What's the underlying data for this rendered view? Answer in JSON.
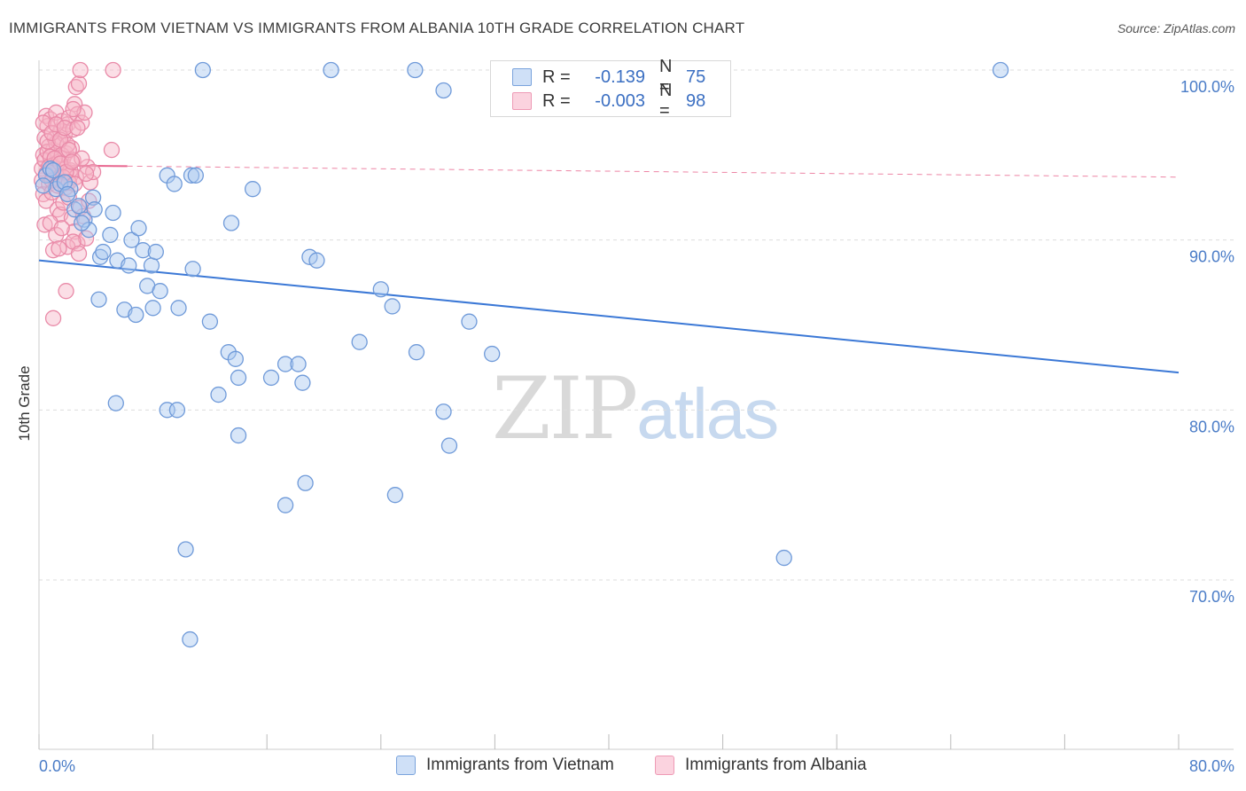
{
  "header": {
    "title": "IMMIGRANTS FROM VIETNAM VS IMMIGRANTS FROM ALBANIA 10TH GRADE CORRELATION CHART",
    "source": "Source: ZipAtlas.com"
  },
  "legend": {
    "rows": [
      {
        "r_label": "R =",
        "r_value": "-0.139",
        "n_label": "N =",
        "n_value": "75",
        "color": "#a9c7f0",
        "stroke": "#6f9ad9"
      },
      {
        "r_label": "R =",
        "r_value": "-0.003",
        "n_label": "N =",
        "n_value": "98",
        "color": "#f6b5c8",
        "stroke": "#e98aa8"
      }
    ]
  },
  "bottom_legend": {
    "vietnam": "Immigrants from Vietnam",
    "albania": "Immigrants from Albania"
  },
  "watermark": {
    "zip": "ZIP",
    "atlas": "atlas"
  },
  "chart_data": {
    "type": "scatter",
    "xlabel": "",
    "ylabel": "10th Grade",
    "xlim": [
      0,
      80
    ],
    "ylim": [
      60,
      100
    ],
    "x_tick_labels": [
      "0.0%",
      "80.0%"
    ],
    "y_ticks": [
      {
        "value": 100,
        "label": "100.0%"
      },
      {
        "value": 90,
        "label": "90.0%"
      },
      {
        "value": 80,
        "label": "80.0%"
      },
      {
        "value": 70,
        "label": "70.0%"
      }
    ],
    "grid": true,
    "series": [
      {
        "name": "Immigrants from Vietnam",
        "color": "#a9c7f0",
        "stroke": "#6f9ad9",
        "trend": {
          "x": [
            0,
            80
          ],
          "y": [
            88.8,
            82.2
          ],
          "color": "#3b78d6",
          "dashed": false
        },
        "points": [
          [
            0.5,
            93.8
          ],
          [
            0.8,
            94.2
          ],
          [
            1.2,
            93.0
          ],
          [
            1.5,
            93.3
          ],
          [
            2.2,
            93.0
          ],
          [
            2.5,
            91.8
          ],
          [
            2.8,
            92.0
          ],
          [
            3.2,
            91.2
          ],
          [
            3.5,
            90.6
          ],
          [
            3.8,
            92.5
          ],
          [
            3.9,
            91.8
          ],
          [
            4.3,
            89.0
          ],
          [
            4.5,
            89.3
          ],
          [
            5.0,
            90.3
          ],
          [
            5.2,
            91.6
          ],
          [
            5.5,
            88.8
          ],
          [
            6.3,
            88.5
          ],
          [
            6.5,
            90.0
          ],
          [
            7.0,
            90.7
          ],
          [
            7.3,
            89.4
          ],
          [
            7.6,
            87.3
          ],
          [
            7.9,
            88.5
          ],
          [
            8.2,
            89.3
          ],
          [
            8.5,
            87.0
          ],
          [
            9.0,
            93.8
          ],
          [
            9.5,
            93.3
          ],
          [
            10.7,
            93.8
          ],
          [
            11.0,
            93.8
          ],
          [
            11.5,
            100.0
          ],
          [
            13.5,
            91.0
          ],
          [
            15.0,
            93.0
          ],
          [
            4.2,
            86.5
          ],
          [
            6.0,
            85.9
          ],
          [
            6.8,
            85.6
          ],
          [
            8.0,
            86.0
          ],
          [
            9.8,
            86.0
          ],
          [
            10.8,
            88.3
          ],
          [
            12.0,
            85.2
          ],
          [
            13.3,
            83.4
          ],
          [
            13.8,
            83.0
          ],
          [
            14.0,
            81.9
          ],
          [
            16.3,
            81.9
          ],
          [
            17.3,
            82.7
          ],
          [
            18.2,
            82.7
          ],
          [
            18.5,
            81.6
          ],
          [
            19.0,
            89.0
          ],
          [
            19.5,
            88.8
          ],
          [
            20.5,
            100.0
          ],
          [
            22.5,
            84.0
          ],
          [
            24.0,
            87.1
          ],
          [
            24.8,
            86.1
          ],
          [
            26.4,
            100.0
          ],
          [
            26.5,
            83.4
          ],
          [
            28.4,
            98.8
          ],
          [
            30.2,
            85.2
          ],
          [
            31.8,
            83.3
          ],
          [
            5.4,
            80.4
          ],
          [
            9.0,
            80.0
          ],
          [
            9.7,
            80.0
          ],
          [
            12.6,
            80.9
          ],
          [
            14.0,
            78.5
          ],
          [
            17.3,
            74.4
          ],
          [
            18.7,
            75.7
          ],
          [
            25.0,
            75.0
          ],
          [
            28.4,
            79.9
          ],
          [
            28.8,
            77.9
          ],
          [
            10.3,
            71.8
          ],
          [
            10.6,
            66.5
          ],
          [
            52.3,
            71.3
          ],
          [
            67.5,
            100.0
          ],
          [
            1.0,
            94.1
          ],
          [
            1.8,
            93.4
          ],
          [
            0.3,
            93.2
          ],
          [
            2.0,
            92.7
          ],
          [
            3.0,
            91.0
          ]
        ]
      },
      {
        "name": "Immigrants from Albania",
        "color": "#f6b5c8",
        "stroke": "#e98aa8",
        "trend": {
          "x": [
            0,
            80
          ],
          "y": [
            94.4,
            93.7
          ],
          "color": "#e8668f",
          "dashed": true,
          "solid_until": 6.2
        },
        "points": [
          [
            0.3,
            95.0
          ],
          [
            0.4,
            96.0
          ],
          [
            0.5,
            97.3
          ],
          [
            0.6,
            96.7
          ],
          [
            0.7,
            95.5
          ],
          [
            0.8,
            97.1
          ],
          [
            0.9,
            94.5
          ],
          [
            1.0,
            95.3
          ],
          [
            1.1,
            96.0
          ],
          [
            1.2,
            97.5
          ],
          [
            1.3,
            94.0
          ],
          [
            1.4,
            95.8
          ],
          [
            1.5,
            96.4
          ],
          [
            1.6,
            97.0
          ],
          [
            1.7,
            94.8
          ],
          [
            1.8,
            96.2
          ],
          [
            1.9,
            95.1
          ],
          [
            2.0,
            96.8
          ],
          [
            2.1,
            97.2
          ],
          [
            2.2,
            93.8
          ],
          [
            2.3,
            95.4
          ],
          [
            2.4,
            96.5
          ],
          [
            2.5,
            98.0
          ],
          [
            2.6,
            99.0
          ],
          [
            2.7,
            97.4
          ],
          [
            2.8,
            99.2
          ],
          [
            2.9,
            100.0
          ],
          [
            3.0,
            96.9
          ],
          [
            3.2,
            97.5
          ],
          [
            3.4,
            94.3
          ],
          [
            3.6,
            93.4
          ],
          [
            3.8,
            94.0
          ],
          [
            5.2,
            100.0
          ],
          [
            5.1,
            95.3
          ],
          [
            0.2,
            93.5
          ],
          [
            0.3,
            92.7
          ],
          [
            0.5,
            92.3
          ],
          [
            0.7,
            93.3
          ],
          [
            0.9,
            92.8
          ],
          [
            1.1,
            93.6
          ],
          [
            1.3,
            91.8
          ],
          [
            1.5,
            91.5
          ],
          [
            1.7,
            92.2
          ],
          [
            1.9,
            93.1
          ],
          [
            2.1,
            92.5
          ],
          [
            2.3,
            91.3
          ],
          [
            2.5,
            90.5
          ],
          [
            2.7,
            89.8
          ],
          [
            2.9,
            91.9
          ],
          [
            3.1,
            91.4
          ],
          [
            3.3,
            90.1
          ],
          [
            3.5,
            92.3
          ],
          [
            0.4,
            90.9
          ],
          [
            0.8,
            91.0
          ],
          [
            1.2,
            90.3
          ],
          [
            1.6,
            90.7
          ],
          [
            2.0,
            89.6
          ],
          [
            2.4,
            89.9
          ],
          [
            2.8,
            89.2
          ],
          [
            1.0,
            89.4
          ],
          [
            1.4,
            89.5
          ],
          [
            1.9,
            87.0
          ],
          [
            1.0,
            85.4
          ],
          [
            0.2,
            94.2
          ],
          [
            0.4,
            94.7
          ],
          [
            0.6,
            95.2
          ],
          [
            0.8,
            94.9
          ],
          [
            1.0,
            94.4
          ],
          [
            1.2,
            95.7
          ],
          [
            1.4,
            94.6
          ],
          [
            1.6,
            95.0
          ],
          [
            1.8,
            94.2
          ],
          [
            2.0,
            95.6
          ],
          [
            2.2,
            94.1
          ],
          [
            2.4,
            94.7
          ],
          [
            2.6,
            93.7
          ],
          [
            0.3,
            96.9
          ],
          [
            0.6,
            95.8
          ],
          [
            0.9,
            96.3
          ],
          [
            1.2,
            96.8
          ],
          [
            1.5,
            95.9
          ],
          [
            1.8,
            96.6
          ],
          [
            2.1,
            95.3
          ],
          [
            2.4,
            97.7
          ],
          [
            2.7,
            96.6
          ],
          [
            3.0,
            94.8
          ],
          [
            3.3,
            93.9
          ],
          [
            0.5,
            93.9
          ],
          [
            0.7,
            94.3
          ],
          [
            0.9,
            93.5
          ],
          [
            1.1,
            94.8
          ],
          [
            1.3,
            93.2
          ],
          [
            1.5,
            94.5
          ],
          [
            1.7,
            93.7
          ],
          [
            1.9,
            94.0
          ],
          [
            2.1,
            93.4
          ],
          [
            2.3,
            94.6
          ],
          [
            2.5,
            93.3
          ]
        ]
      }
    ]
  }
}
